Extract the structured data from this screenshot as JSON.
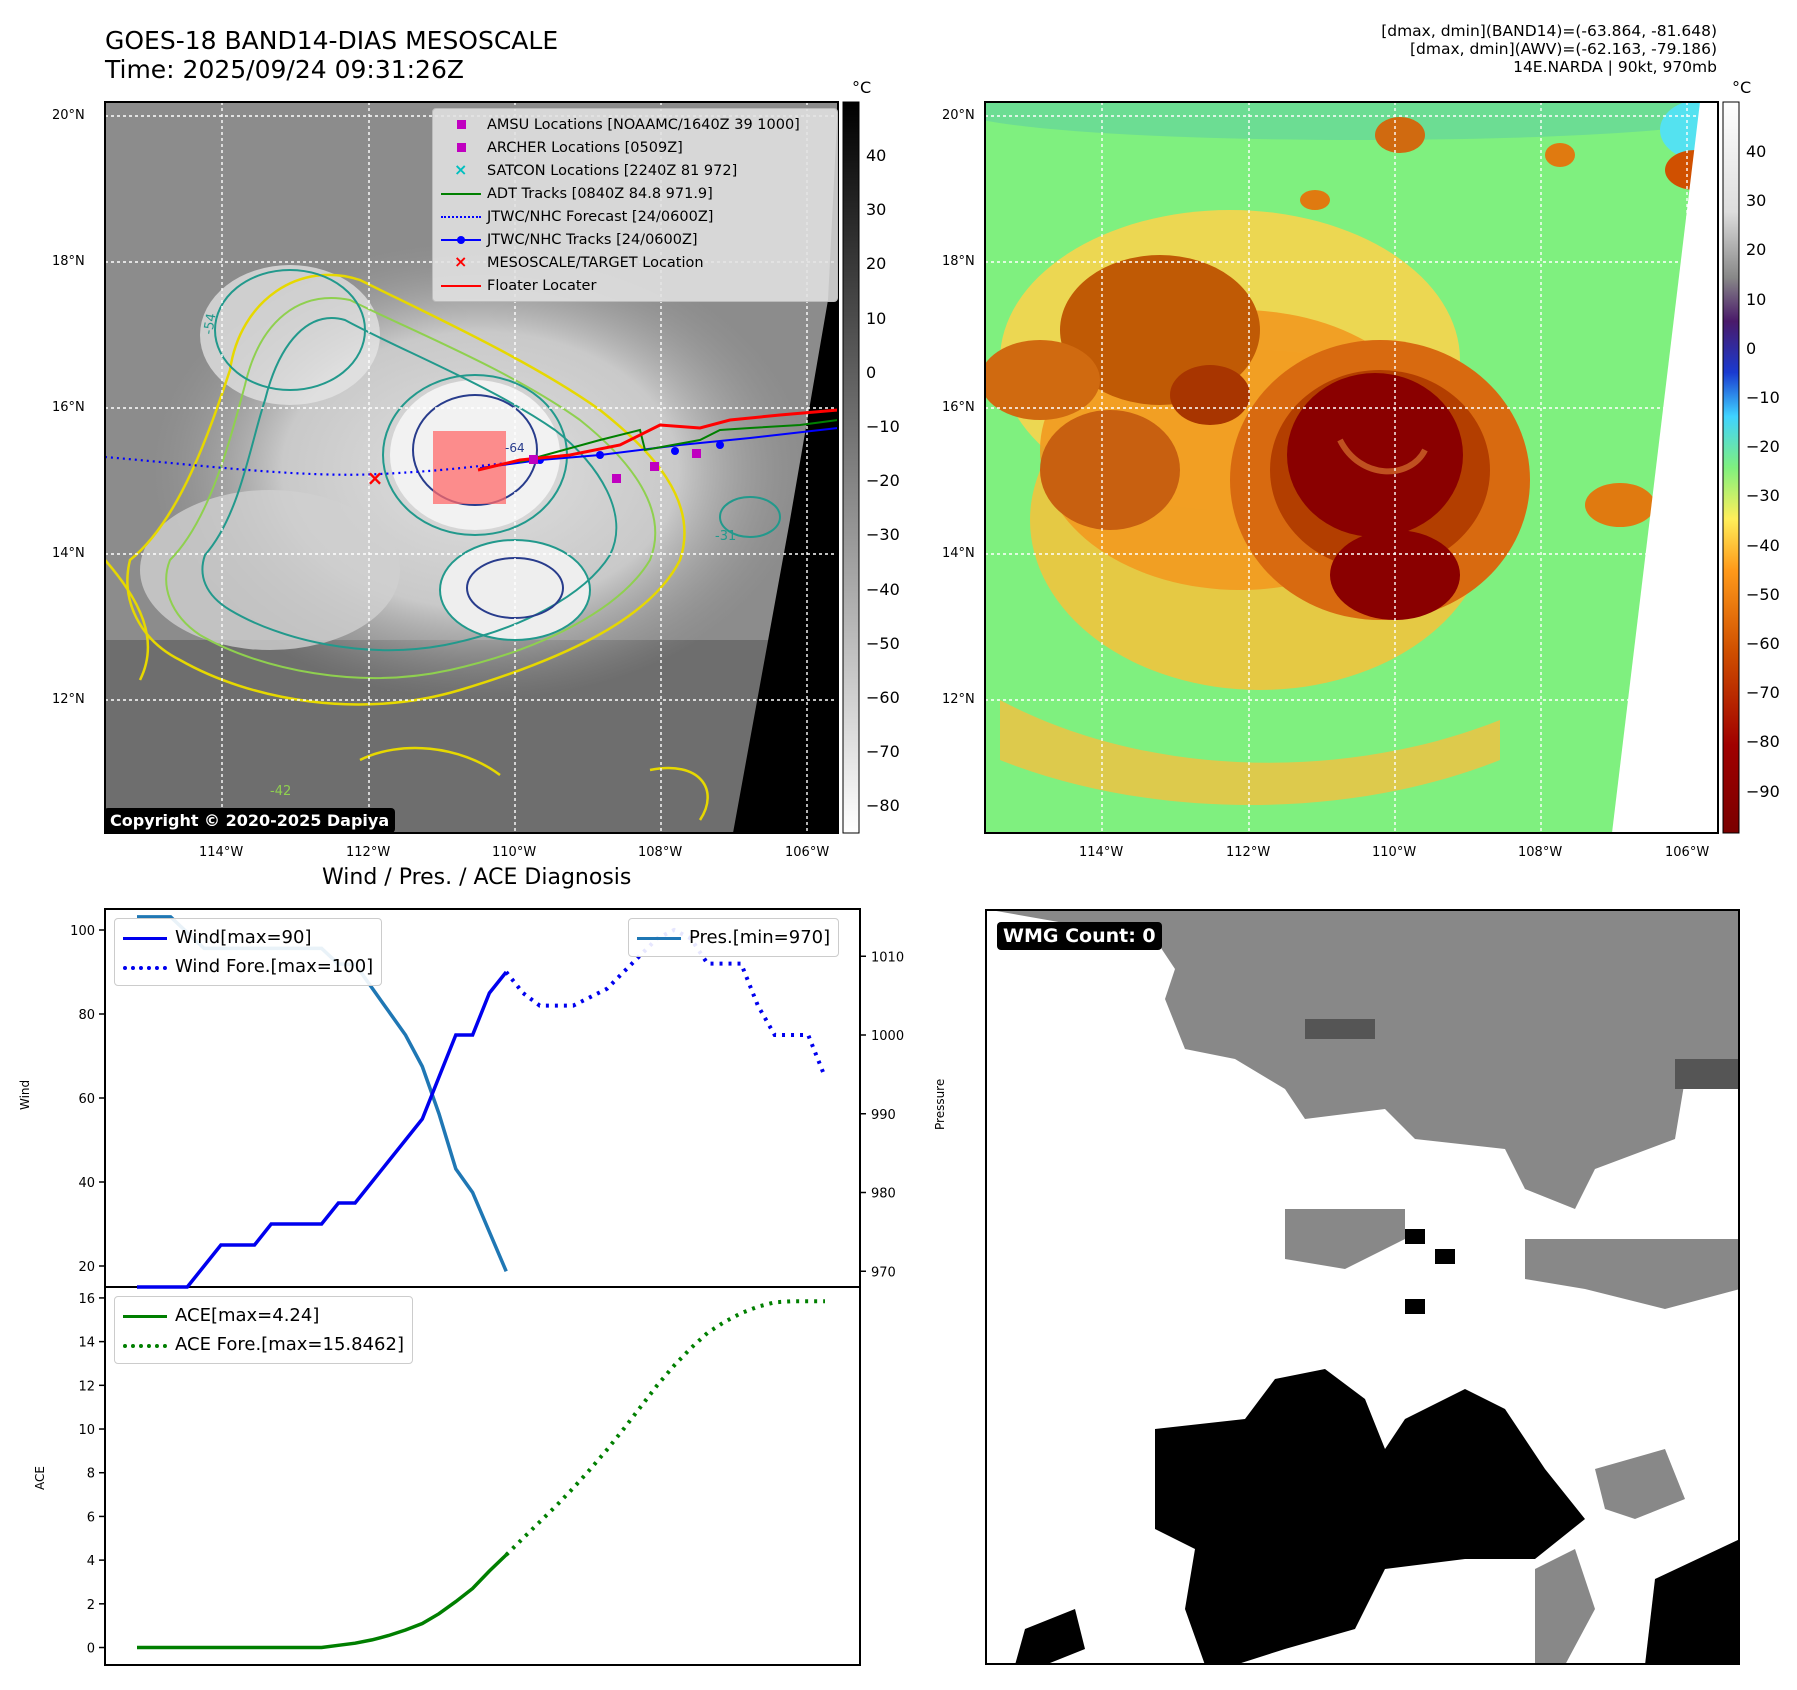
{
  "header": {
    "title": "GOES-18 BAND14-DIAS MESOSCALE",
    "time": "Time: 2025/09/24 09:31:26Z",
    "info_line1": "[dmax, dmin](BAND14)=(-63.864, -81.648)",
    "info_line2": "[dmax, dmin](AWV)=(-62.163, -79.186)",
    "info_line3": "14E.NARDA | 90kt, 970mb"
  },
  "maps": {
    "lat_labels": [
      "20°N",
      "18°N",
      "16°N",
      "14°N",
      "12°N"
    ],
    "lon_labels": [
      "114°W",
      "112°W",
      "110°W",
      "108°W",
      "106°W"
    ],
    "copyright": "Copyright © 2020-2025 Dapiya",
    "cbar_unit": "°C",
    "cbar1_ticks": [
      "40",
      "30",
      "20",
      "10",
      "0",
      "−10",
      "−20",
      "−30",
      "−40",
      "−50",
      "−60",
      "−70",
      "−80"
    ],
    "cbar2_ticks": [
      "40",
      "30",
      "20",
      "10",
      "0",
      "−10",
      "−20",
      "−30",
      "−40",
      "−50",
      "−60",
      "−70",
      "−80",
      "−90"
    ],
    "contour_labels": [
      "-54",
      "-31",
      "-42",
      "-64"
    ],
    "legend": [
      {
        "label": "AMSU Locations [NOAAMC/1640Z 39 1000]",
        "color": "#c000c0",
        "sym": "square"
      },
      {
        "label": "ARCHER Locations [0509Z]",
        "color": "#c000c0",
        "sym": "square"
      },
      {
        "label": "SATCON Locations [2240Z 81 972]",
        "color": "#00bfbf",
        "sym": "x"
      },
      {
        "label": "ADT Tracks [0840Z 84.8 971.9]",
        "color": "#008000",
        "sym": "line"
      },
      {
        "label": "JTWC/NHC Forecast [24/0600Z]",
        "color": "#0000ff",
        "sym": "dotted"
      },
      {
        "label": "JTWC/NHC Tracks [24/0600Z]",
        "color": "#0000ff",
        "sym": "linedot"
      },
      {
        "label": "MESOSCALE/TARGET Location",
        "color": "#ff0000",
        "sym": "x"
      },
      {
        "label": "Floater Locater",
        "color": "#ff0000",
        "sym": "line"
      }
    ]
  },
  "diagnosis": {
    "title": "Wind / Pres. / ACE Diagnosis",
    "wind_ylabel": "Wind",
    "pres_ylabel": "Pressure",
    "ace_ylabel": "ACE",
    "wind_legend": [
      "Wind[max=90]",
      "Wind Fore.[max=100]"
    ],
    "pres_legend": "Pres.[min=970]",
    "ace_legend": [
      "ACE[max=4.24]",
      "ACE Fore.[max=15.8462]"
    ],
    "wmg": "WMG Count: 0"
  },
  "colors": {
    "wind": "#0000ee",
    "pressure": "#1f77b4",
    "ace": "#007f00"
  },
  "chart_data": [
    {
      "type": "line",
      "title": "Wind / Pres. / ACE Diagnosis",
      "ylabel": "Wind",
      "ylim": [
        15,
        105
      ],
      "y2label": "Pressure",
      "y2lim": [
        968,
        1016
      ],
      "x": [
        0,
        1,
        2,
        3,
        4,
        5,
        6,
        7,
        8,
        9,
        10,
        11,
        12,
        13,
        14,
        15,
        16,
        17,
        18,
        19,
        20,
        21,
        22,
        23,
        24,
        25,
        26,
        27,
        28,
        29,
        30,
        31,
        32,
        33,
        34,
        35,
        36,
        37,
        38,
        39,
        40,
        41
      ],
      "series": [
        {
          "name": "Wind[max=90]",
          "x": [
            0,
            1,
            2,
            3,
            4,
            5,
            6,
            7,
            8,
            9,
            10,
            11,
            12,
            13,
            14,
            15,
            16,
            17,
            18,
            19,
            20,
            21,
            22
          ],
          "values": [
            15,
            15,
            15,
            15,
            20,
            25,
            25,
            25,
            30,
            30,
            30,
            30,
            35,
            35,
            40,
            45,
            50,
            55,
            65,
            75,
            75,
            85,
            90
          ]
        },
        {
          "name": "Wind Fore.[max=100]",
          "x": [
            22,
            23,
            24,
            25,
            26,
            27,
            28,
            29,
            30,
            31,
            32,
            33,
            34,
            35,
            36,
            37,
            38,
            39,
            40,
            41
          ],
          "values": [
            90,
            85,
            82,
            82,
            82,
            84,
            86,
            90,
            94,
            98,
            100,
            98,
            92,
            92,
            92,
            82,
            75,
            75,
            75,
            65
          ]
        },
        {
          "name": "Pres.[min=970]",
          "axis": "right",
          "x": [
            0,
            1,
            2,
            3,
            4,
            5,
            6,
            7,
            8,
            9,
            10,
            11,
            12,
            13,
            14,
            15,
            16,
            17,
            18,
            19,
            20,
            21,
            22
          ],
          "values": [
            1015,
            1015,
            1015,
            1013,
            1011,
            1011,
            1011,
            1011,
            1011,
            1011,
            1011,
            1011,
            1009,
            1009,
            1006,
            1003,
            1000,
            996,
            990,
            983,
            980,
            975,
            970
          ]
        }
      ]
    },
    {
      "type": "line",
      "ylabel": "ACE",
      "ylim": [
        -0.8,
        16.5
      ],
      "x": [
        0,
        1,
        2,
        3,
        4,
        5,
        6,
        7,
        8,
        9,
        10,
        11,
        12,
        13,
        14,
        15,
        16,
        17,
        18,
        19,
        20,
        21,
        22,
        23,
        24,
        25,
        26,
        27,
        28,
        29,
        30,
        31,
        32,
        33,
        34,
        35,
        36,
        37,
        38,
        39,
        40,
        41
      ],
      "series": [
        {
          "name": "ACE[max=4.24]",
          "x": [
            0,
            1,
            2,
            3,
            4,
            5,
            6,
            7,
            8,
            9,
            10,
            11,
            12,
            13,
            14,
            15,
            16,
            17,
            18,
            19,
            20,
            21,
            22
          ],
          "values": [
            0,
            0,
            0,
            0,
            0,
            0,
            0,
            0,
            0,
            0,
            0,
            0,
            0.1,
            0.2,
            0.35,
            0.55,
            0.8,
            1.1,
            1.55,
            2.1,
            2.7,
            3.5,
            4.24
          ]
        },
        {
          "name": "ACE Fore.[max=15.8462]",
          "x": [
            22,
            23,
            24,
            25,
            26,
            27,
            28,
            29,
            30,
            31,
            32,
            33,
            34,
            35,
            36,
            37,
            38,
            39,
            40,
            41
          ],
          "values": [
            4.24,
            5.0,
            5.75,
            6.5,
            7.3,
            8.15,
            9.05,
            10.0,
            11.0,
            12.0,
            12.9,
            13.7,
            14.4,
            14.9,
            15.3,
            15.6,
            15.8,
            15.8462,
            15.8462,
            15.8462
          ]
        }
      ]
    }
  ]
}
